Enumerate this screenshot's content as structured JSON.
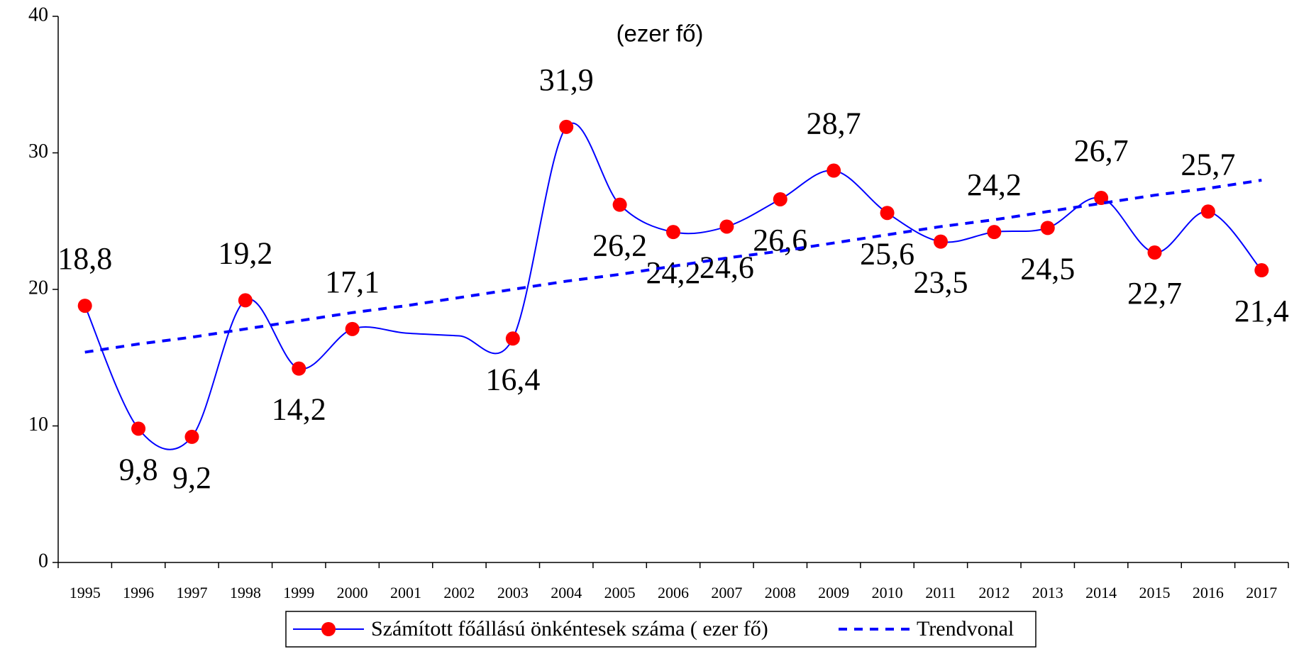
{
  "chart_data": {
    "type": "line",
    "subtitle": "(ezer fő)",
    "categories": [
      "1995",
      "1996",
      "1997",
      "1998",
      "1999",
      "2000",
      "2001",
      "2002",
      "2003",
      "2004",
      "2005",
      "2006",
      "2007",
      "2008",
      "2009",
      "2010",
      "2011",
      "2012",
      "2013",
      "2014",
      "2015",
      "2016",
      "2017"
    ],
    "series": [
      {
        "name": "Számított főállású önkéntesek száma ( ezer fő)",
        "color": "#0000ff",
        "marker_color": "#ff0000",
        "values": [
          18.8,
          9.8,
          9.2,
          19.2,
          14.2,
          17.1,
          16.8,
          16.6,
          16.4,
          31.9,
          26.2,
          24.2,
          24.6,
          26.6,
          28.7,
          25.6,
          23.5,
          24.2,
          24.5,
          26.7,
          22.7,
          25.7,
          21.4
        ],
        "value_labels": [
          "18,8",
          "9,8",
          "9,2",
          "19,2",
          "14,2",
          "17,1",
          null,
          null,
          "16,4",
          "31,9",
          "26,2",
          "24,2",
          "24,6",
          "26,6",
          "28,7",
          "25,6",
          "23,5",
          "24,2",
          "24,5",
          "26,7",
          "22,7",
          "25,7",
          "21,4"
        ]
      },
      {
        "name": "Trendvonal",
        "color": "#0000ff",
        "dashed": true,
        "values": [
          15.4,
          16.0,
          16.5,
          17.1,
          17.7,
          18.3,
          18.8,
          19.4,
          20.0,
          20.6,
          21.1,
          21.7,
          22.3,
          22.8,
          23.4,
          24.0,
          24.6,
          25.1,
          25.7,
          26.3,
          26.9,
          27.4,
          28.0
        ]
      }
    ],
    "ylim": [
      0,
      40
    ],
    "yticks": [
      0,
      10,
      20,
      30,
      40
    ],
    "grid": false,
    "legend": "bottom"
  }
}
